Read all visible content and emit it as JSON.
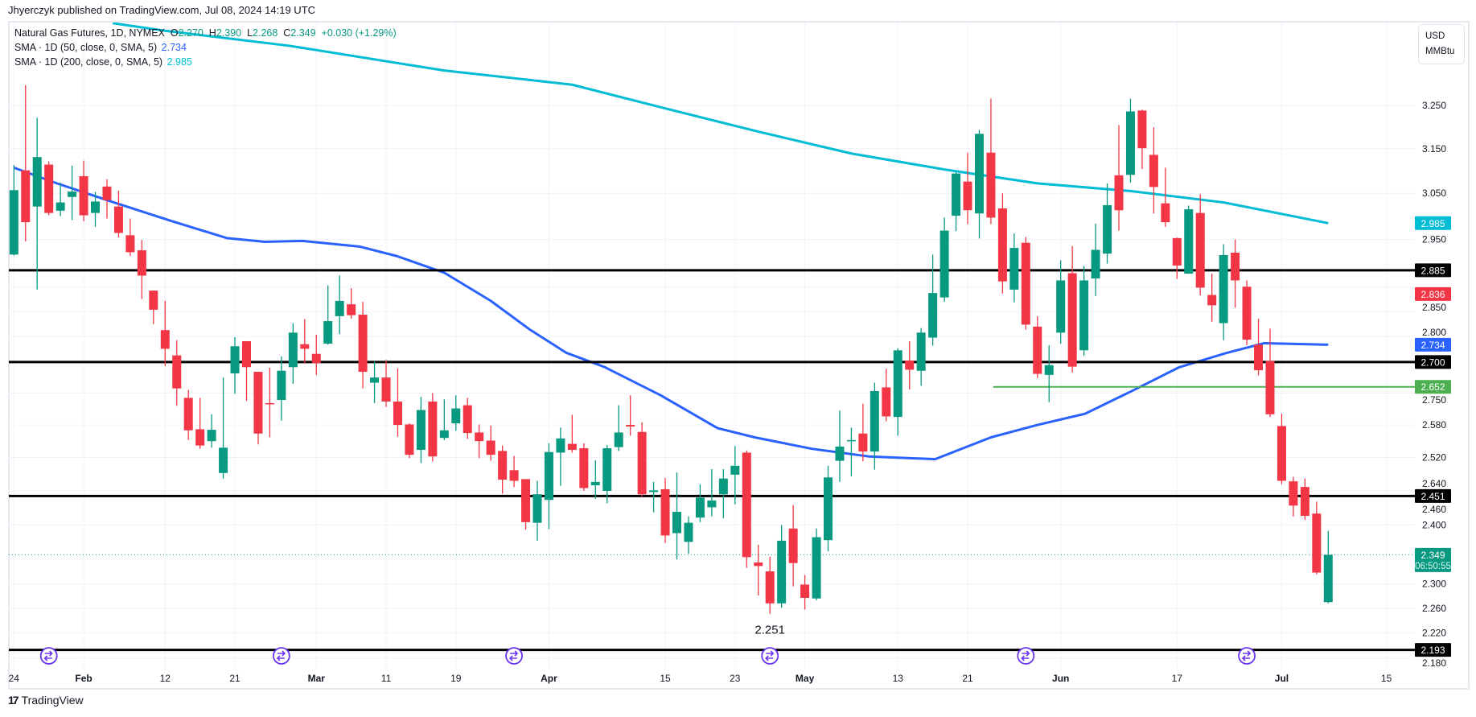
{
  "header": {
    "published": "Jhyerczyk published on TradingView.com, Jul 08, 2024 14:19 UTC"
  },
  "legend": {
    "symbol": "Natural Gas Futures, 1D, NYMEX",
    "o_label": "O",
    "o": "2.270",
    "h_label": "H",
    "h": "2.390",
    "l_label": "L",
    "l": "2.268",
    "c_label": "C",
    "c": "2.349",
    "change": "+0.030 (+1.29%)",
    "sma50": "SMA · 1D (50, close, 0, SMA, 5)",
    "sma50_value": "2.734",
    "sma200": "SMA · 1D (200, close, 0, SMA, 5)",
    "sma200_value": "2.985"
  },
  "unit": {
    "currency": "USD",
    "unit": "MMBtu"
  },
  "footer": {
    "brand": "TradingView",
    "brand_mark": "17"
  },
  "colors": {
    "up": "#089981",
    "down": "#f23645",
    "sma50": "#2962ff",
    "sma200": "#00bcd4",
    "support": "#000000",
    "green_line": "#4caf50",
    "event": "#6a35f0"
  },
  "chart_data": {
    "type": "candlestick",
    "title": "Natural Gas Futures, 1D, NYMEX",
    "yscale": "log",
    "ylim": [
      2.16,
      3.45
    ],
    "y_ticks": [
      "3.250",
      "3.150",
      "3.050",
      "2.950",
      "2.850",
      "2.800",
      "2.750",
      "2.640",
      "2.580",
      "2.520",
      "2.460",
      "2.400",
      "2.300",
      "2.260",
      "2.220",
      "2.180"
    ],
    "x_ticks": [
      {
        "label": "24",
        "bar": 0
      },
      {
        "label": "Feb",
        "bar": 6
      },
      {
        "label": "12",
        "bar": 13
      },
      {
        "label": "21",
        "bar": 19
      },
      {
        "label": "Mar",
        "bar": 26
      },
      {
        "label": "11",
        "bar": 32
      },
      {
        "label": "19",
        "bar": 38
      },
      {
        "label": "Apr",
        "bar": 46
      },
      {
        "label": "15",
        "bar": 56
      },
      {
        "label": "23",
        "bar": 62
      },
      {
        "label": "May",
        "bar": 68
      },
      {
        "label": "13",
        "bar": 76
      },
      {
        "label": "21",
        "bar": 82
      },
      {
        "label": "Jun",
        "bar": 90
      },
      {
        "label": "17",
        "bar": 100
      },
      {
        "label": "Jul",
        "bar": 109
      },
      {
        "label": "15",
        "bar": 118
      }
    ],
    "ohlc_fields": [
      "open",
      "high",
      "low",
      "close"
    ],
    "ohlc": [
      [
        2.918,
        3.113,
        2.916,
        3.057
      ],
      [
        3.101,
        3.298,
        2.946,
        2.987
      ],
      [
        3.021,
        3.221,
        2.845,
        3.131
      ],
      [
        3.114,
        3.121,
        3.002,
        3.007
      ],
      [
        3.012,
        3.074,
        3.0,
        3.03
      ],
      [
        3.042,
        3.112,
        2.992,
        3.054
      ],
      [
        3.088,
        3.123,
        2.989,
        3.002
      ],
      [
        3.007,
        3.053,
        2.977,
        3.032
      ],
      [
        3.065,
        3.081,
        2.995,
        3.035
      ],
      [
        3.021,
        3.056,
        2.954,
        2.964
      ],
      [
        2.959,
        2.995,
        2.915,
        2.923
      ],
      [
        2.927,
        2.949,
        2.826,
        2.874
      ],
      [
        2.843,
        2.843,
        2.775,
        2.804
      ],
      [
        2.763,
        2.822,
        2.692,
        2.726
      ],
      [
        2.713,
        2.743,
        2.616,
        2.649
      ],
      [
        2.631,
        2.646,
        2.552,
        2.57
      ],
      [
        2.572,
        2.631,
        2.536,
        2.542
      ],
      [
        2.55,
        2.6,
        2.538,
        2.571
      ],
      [
        2.492,
        2.67,
        2.482,
        2.538
      ],
      [
        2.678,
        2.749,
        2.639,
        2.731
      ],
      [
        2.741,
        2.741,
        2.625,
        2.69
      ],
      [
        2.681,
        2.681,
        2.544,
        2.564
      ],
      [
        2.621,
        2.689,
        2.557,
        2.619
      ],
      [
        2.627,
        2.711,
        2.588,
        2.683
      ],
      [
        2.69,
        2.777,
        2.658,
        2.758
      ],
      [
        2.735,
        2.785,
        2.697,
        2.726
      ],
      [
        2.716,
        2.754,
        2.675,
        2.698
      ],
      [
        2.736,
        2.854,
        2.734,
        2.781
      ],
      [
        2.791,
        2.874,
        2.755,
        2.822
      ],
      [
        2.815,
        2.848,
        2.786,
        2.793
      ],
      [
        2.794,
        2.82,
        2.649,
        2.681
      ],
      [
        2.66,
        2.701,
        2.621,
        2.67
      ],
      [
        2.67,
        2.704,
        2.614,
        2.624
      ],
      [
        2.624,
        2.688,
        2.558,
        2.58
      ],
      [
        2.581,
        2.583,
        2.519,
        2.525
      ],
      [
        2.534,
        2.633,
        2.51,
        2.608
      ],
      [
        2.624,
        2.64,
        2.513,
        2.522
      ],
      [
        2.556,
        2.628,
        2.552,
        2.57
      ],
      [
        2.583,
        2.636,
        2.569,
        2.611
      ],
      [
        2.617,
        2.631,
        2.554,
        2.565
      ],
      [
        2.566,
        2.581,
        2.519,
        2.55
      ],
      [
        2.551,
        2.579,
        2.514,
        2.525
      ],
      [
        2.532,
        2.542,
        2.455,
        2.48
      ],
      [
        2.497,
        2.523,
        2.467,
        2.478
      ],
      [
        2.481,
        2.481,
        2.392,
        2.405
      ],
      [
        2.404,
        2.478,
        2.373,
        2.454
      ],
      [
        2.444,
        2.546,
        2.393,
        2.53
      ],
      [
        2.529,
        2.575,
        2.469,
        2.555
      ],
      [
        2.545,
        2.599,
        2.529,
        2.534
      ],
      [
        2.537,
        2.546,
        2.46,
        2.465
      ],
      [
        2.47,
        2.515,
        2.446,
        2.476
      ],
      [
        2.46,
        2.543,
        2.438,
        2.537
      ],
      [
        2.539,
        2.617,
        2.532,
        2.566
      ],
      [
        2.58,
        2.636,
        2.56,
        2.577
      ],
      [
        2.567,
        2.585,
        2.45,
        2.454
      ],
      [
        2.458,
        2.476,
        2.422,
        2.461
      ],
      [
        2.463,
        2.483,
        2.369,
        2.382
      ],
      [
        2.386,
        2.493,
        2.341,
        2.423
      ],
      [
        2.371,
        2.415,
        2.351,
        2.404
      ],
      [
        2.413,
        2.472,
        2.405,
        2.448
      ],
      [
        2.431,
        2.499,
        2.415,
        2.443
      ],
      [
        2.454,
        2.499,
        2.412,
        2.482
      ],
      [
        2.489,
        2.541,
        2.436,
        2.505
      ],
      [
        2.529,
        2.533,
        2.327,
        2.345
      ],
      [
        2.336,
        2.366,
        2.281,
        2.33
      ],
      [
        2.321,
        2.346,
        2.251,
        2.268
      ],
      [
        2.268,
        2.4,
        2.261,
        2.373
      ],
      [
        2.394,
        2.435,
        2.296,
        2.335
      ],
      [
        2.299,
        2.315,
        2.258,
        2.277
      ],
      [
        2.276,
        2.394,
        2.273,
        2.379
      ],
      [
        2.374,
        2.505,
        2.355,
        2.484
      ],
      [
        2.514,
        2.607,
        2.476,
        2.54
      ],
      [
        2.55,
        2.575,
        2.486,
        2.552
      ],
      [
        2.564,
        2.62,
        2.513,
        2.531
      ],
      [
        2.531,
        2.66,
        2.498,
        2.644
      ],
      [
        2.651,
        2.687,
        2.587,
        2.596
      ],
      [
        2.595,
        2.727,
        2.56,
        2.723
      ],
      [
        2.703,
        2.741,
        2.647,
        2.685
      ],
      [
        2.683,
        2.767,
        2.654,
        2.758
      ],
      [
        2.748,
        2.918,
        2.732,
        2.838
      ],
      [
        2.829,
        2.997,
        2.82,
        2.969
      ],
      [
        3.001,
        3.097,
        2.968,
        3.094
      ],
      [
        3.076,
        3.141,
        2.983,
        3.013
      ],
      [
        3.006,
        3.193,
        2.952,
        3.184
      ],
      [
        3.141,
        3.266,
        2.983,
        2.997
      ],
      [
        3.017,
        3.05,
        2.837,
        2.862
      ],
      [
        2.845,
        2.963,
        2.819,
        2.932
      ],
      [
        2.943,
        2.955,
        2.764,
        2.774
      ],
      [
        2.77,
        2.791,
        2.669,
        2.677
      ],
      [
        2.675,
        2.733,
        2.623,
        2.694
      ],
      [
        2.758,
        2.906,
        2.736,
        2.864
      ],
      [
        2.879,
        2.936,
        2.68,
        2.691
      ],
      [
        2.723,
        2.894,
        2.712,
        2.864
      ],
      [
        2.868,
        2.984,
        2.832,
        2.928
      ],
      [
        2.92,
        3.072,
        2.899,
        3.024
      ],
      [
        3.09,
        3.204,
        2.969,
        3.013
      ],
      [
        3.091,
        3.266,
        3.074,
        3.236
      ],
      [
        3.238,
        3.24,
        3.104,
        3.151
      ],
      [
        3.136,
        3.199,
        3.006,
        3.064
      ],
      [
        3.028,
        3.107,
        2.977,
        2.987
      ],
      [
        2.953,
        2.954,
        2.867,
        2.895
      ],
      [
        2.878,
        3.023,
        2.878,
        3.015
      ],
      [
        3.007,
        3.048,
        2.833,
        2.849
      ],
      [
        2.834,
        2.878,
        2.78,
        2.813
      ],
      [
        2.777,
        2.94,
        2.743,
        2.917
      ],
      [
        2.922,
        2.95,
        2.808,
        2.864
      ],
      [
        2.851,
        2.864,
        2.733,
        2.744
      ],
      [
        2.734,
        2.786,
        2.674,
        2.684
      ],
      [
        2.702,
        2.766,
        2.595,
        2.6
      ],
      [
        2.578,
        2.601,
        2.472,
        2.478
      ],
      [
        2.477,
        2.485,
        2.415,
        2.434
      ],
      [
        2.467,
        2.482,
        2.409,
        2.416
      ],
      [
        2.42,
        2.441,
        2.316,
        2.319
      ],
      [
        2.27,
        2.39,
        2.268,
        2.349
      ]
    ],
    "sma50": [
      [
        0,
        3.107
      ],
      [
        3.7,
        3.072
      ],
      [
        8.6,
        3.03
      ],
      [
        13.5,
        2.99
      ],
      [
        18.3,
        2.953
      ],
      [
        21.6,
        2.945
      ],
      [
        24.8,
        2.947
      ],
      [
        29.7,
        2.935
      ],
      [
        32.9,
        2.915
      ],
      [
        37,
        2.88
      ],
      [
        41,
        2.822
      ],
      [
        44.3,
        2.765
      ],
      [
        47.5,
        2.718
      ],
      [
        50.8,
        2.69
      ],
      [
        55.6,
        2.636
      ],
      [
        60.5,
        2.574
      ],
      [
        63.7,
        2.557
      ],
      [
        68.6,
        2.536
      ],
      [
        73.5,
        2.522
      ],
      [
        79.2,
        2.517
      ],
      [
        84,
        2.557
      ],
      [
        88,
        2.58
      ],
      [
        92.1,
        2.601
      ],
      [
        96.2,
        2.645
      ],
      [
        100.2,
        2.69
      ],
      [
        104.3,
        2.718
      ],
      [
        107.5,
        2.737
      ],
      [
        113,
        2.734
      ]
    ],
    "sma200": [
      [
        8.5,
        3.449
      ],
      [
        13,
        3.43
      ],
      [
        23.7,
        3.393
      ],
      [
        37,
        3.333
      ],
      [
        48,
        3.299
      ],
      [
        56,
        3.243
      ],
      [
        64,
        3.189
      ],
      [
        72,
        3.139
      ],
      [
        80,
        3.103
      ],
      [
        88,
        3.072
      ],
      [
        96,
        3.055
      ],
      [
        104,
        3.03
      ],
      [
        113,
        2.985
      ]
    ],
    "horizontal_lines": [
      {
        "value": 2.885,
        "color": "#000000",
        "from_bar": null
      },
      {
        "value": 2.7,
        "color": "#000000",
        "from_bar": null
      },
      {
        "value": 2.451,
        "color": "#000000",
        "from_bar": null
      },
      {
        "value": 2.193,
        "color": "#000000",
        "from_bar": null
      },
      {
        "value": 2.652,
        "color": "#4caf50",
        "from_bar": 84.2
      }
    ],
    "current_price_line": 2.349,
    "annotations": [
      {
        "text": "2.251",
        "bar": 65,
        "value": 2.251
      }
    ],
    "event_bars": [
      3,
      23,
      43,
      65,
      87,
      106
    ],
    "badges": [
      {
        "label": "2.985",
        "value": 2.985,
        "bg": "#00bcd4"
      },
      {
        "label": "2.885",
        "value": 2.885,
        "bg": "#000000"
      },
      {
        "label": "2.836",
        "value": 2.836,
        "bg": "#f23645"
      },
      {
        "label": "2.734",
        "value": 2.734,
        "bg": "#2962ff"
      },
      {
        "label": "2.700",
        "value": 2.7,
        "bg": "#000000"
      },
      {
        "label": "2.652",
        "value": 2.652,
        "bg": "#4caf50"
      },
      {
        "label": "2.451",
        "value": 2.451,
        "bg": "#000000"
      },
      {
        "label": "2.349",
        "value": 2.349,
        "bg": "#089981",
        "sub": "06:50:55"
      },
      {
        "label": "2.193",
        "value": 2.193,
        "bg": "#000000"
      }
    ]
  }
}
